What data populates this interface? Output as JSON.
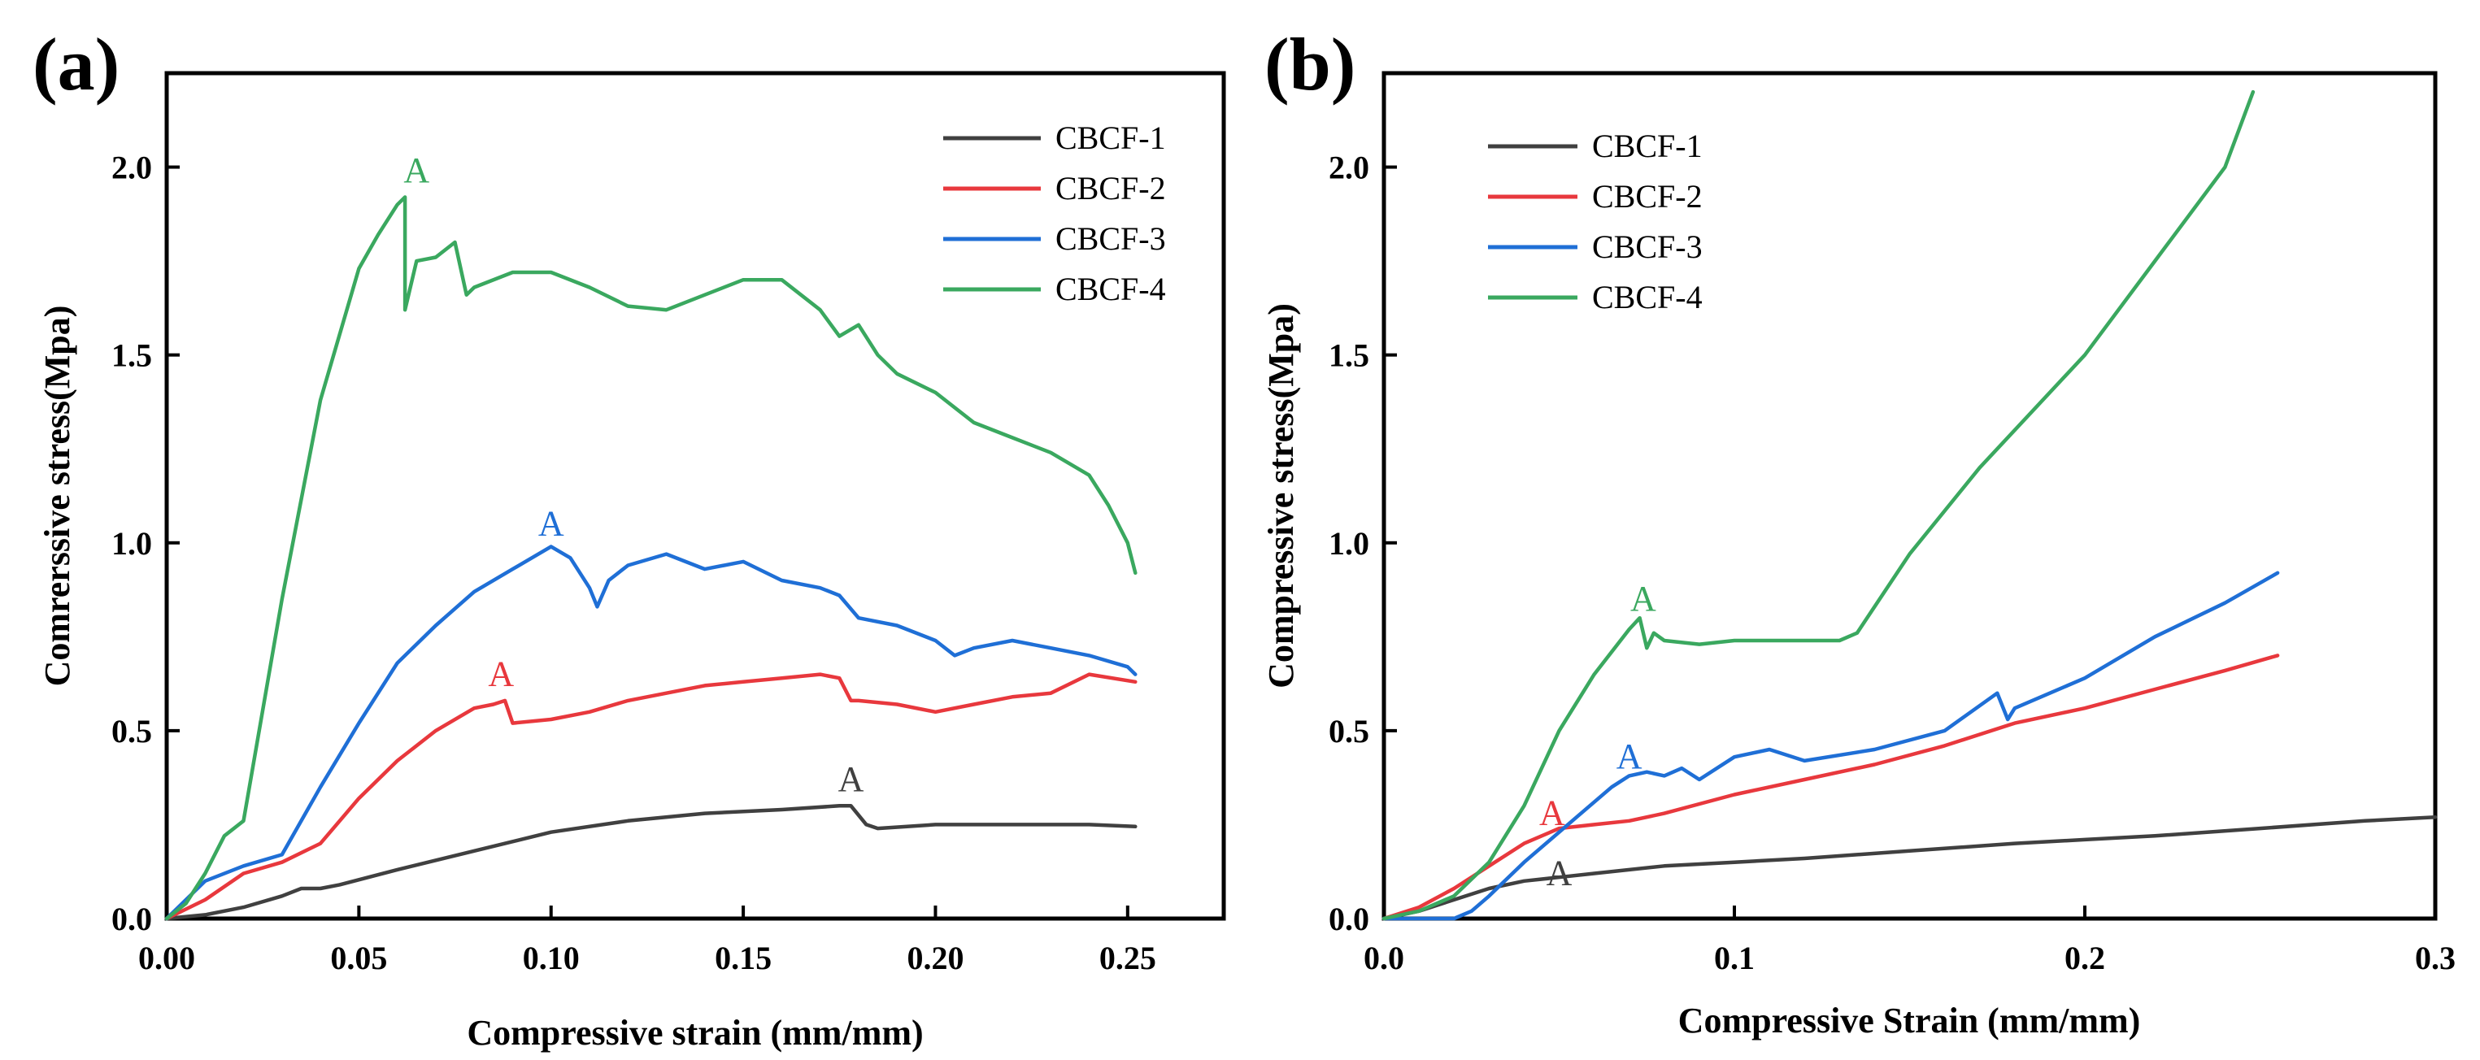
{
  "colors": {
    "CBCF-1": "#404040",
    "CBCF-2": "#e8383d",
    "CBCF-3": "#1f6fd6",
    "CBCF-4": "#3aa85f"
  },
  "chart_data": [
    {
      "panel": "(a)",
      "type": "line",
      "xlabel": "Compressive strain (mm/mm)",
      "ylabel": "Comrerssive stress(Mpa)",
      "xlim": [
        0,
        0.275
      ],
      "ylim": [
        0,
        2.25
      ],
      "xticks": [
        0.0,
        0.05,
        0.1,
        0.15,
        0.2,
        0.25
      ],
      "xtick_labels": [
        "0.00",
        "0.05",
        "0.10",
        "0.15",
        "0.20",
        "0.25"
      ],
      "yticks": [
        0.0,
        0.5,
        1.0,
        1.5,
        2.0
      ],
      "ytick_labels": [
        "0.0",
        "0.5",
        "1.0",
        "1.5",
        "2.0"
      ],
      "legend_position": "top-right",
      "series": [
        {
          "name": "CBCF-1",
          "x": [
            0,
            0.01,
            0.02,
            0.03,
            0.035,
            0.04,
            0.045,
            0.06,
            0.08,
            0.1,
            0.12,
            0.14,
            0.16,
            0.175,
            0.178,
            0.182,
            0.185,
            0.2,
            0.22,
            0.24,
            0.252
          ],
          "y": [
            0,
            0.01,
            0.03,
            0.06,
            0.08,
            0.08,
            0.09,
            0.13,
            0.18,
            0.23,
            0.26,
            0.28,
            0.29,
            0.3,
            0.3,
            0.25,
            0.24,
            0.25,
            0.25,
            0.25,
            0.245
          ]
        },
        {
          "name": "CBCF-2",
          "x": [
            0,
            0.01,
            0.02,
            0.03,
            0.04,
            0.05,
            0.06,
            0.07,
            0.08,
            0.085,
            0.088,
            0.09,
            0.1,
            0.11,
            0.12,
            0.13,
            0.14,
            0.15,
            0.16,
            0.17,
            0.175,
            0.178,
            0.18,
            0.19,
            0.2,
            0.21,
            0.22,
            0.23,
            0.24,
            0.252
          ],
          "y": [
            0,
            0.05,
            0.12,
            0.15,
            0.2,
            0.32,
            0.42,
            0.5,
            0.56,
            0.57,
            0.58,
            0.52,
            0.53,
            0.55,
            0.58,
            0.6,
            0.62,
            0.63,
            0.64,
            0.65,
            0.64,
            0.58,
            0.58,
            0.57,
            0.55,
            0.57,
            0.59,
            0.6,
            0.65,
            0.63
          ]
        },
        {
          "name": "CBCF-3",
          "x": [
            0,
            0.01,
            0.02,
            0.03,
            0.04,
            0.05,
            0.06,
            0.07,
            0.08,
            0.09,
            0.1,
            0.105,
            0.11,
            0.112,
            0.115,
            0.12,
            0.13,
            0.14,
            0.15,
            0.16,
            0.17,
            0.175,
            0.18,
            0.19,
            0.2,
            0.205,
            0.21,
            0.22,
            0.23,
            0.24,
            0.25,
            0.252
          ],
          "y": [
            0,
            0.1,
            0.14,
            0.17,
            0.35,
            0.52,
            0.68,
            0.78,
            0.87,
            0.93,
            0.99,
            0.96,
            0.88,
            0.83,
            0.9,
            0.94,
            0.97,
            0.93,
            0.95,
            0.9,
            0.88,
            0.86,
            0.8,
            0.78,
            0.74,
            0.7,
            0.72,
            0.74,
            0.72,
            0.7,
            0.67,
            0.65
          ]
        },
        {
          "name": "CBCF-4",
          "x": [
            0,
            0.005,
            0.01,
            0.015,
            0.02,
            0.03,
            0.04,
            0.05,
            0.055,
            0.06,
            0.062,
            0.062,
            0.065,
            0.07,
            0.075,
            0.078,
            0.08,
            0.09,
            0.1,
            0.11,
            0.12,
            0.13,
            0.14,
            0.15,
            0.16,
            0.17,
            0.175,
            0.18,
            0.185,
            0.19,
            0.2,
            0.21,
            0.22,
            0.23,
            0.24,
            0.245,
            0.25,
            0.252
          ],
          "y": [
            0,
            0.04,
            0.12,
            0.22,
            0.26,
            0.85,
            1.38,
            1.73,
            1.82,
            1.9,
            1.92,
            1.62,
            1.75,
            1.76,
            1.8,
            1.66,
            1.68,
            1.72,
            1.72,
            1.68,
            1.63,
            1.62,
            1.66,
            1.7,
            1.7,
            1.62,
            1.55,
            1.58,
            1.5,
            1.45,
            1.4,
            1.32,
            1.28,
            1.24,
            1.18,
            1.1,
            1.0,
            0.92
          ]
        }
      ],
      "annotations": [
        {
          "text": "A",
          "series": "CBCF-4",
          "x": 0.065,
          "y": 1.96
        },
        {
          "text": "A",
          "series": "CBCF-3",
          "x": 0.1,
          "y": 1.02
        },
        {
          "text": "A",
          "series": "CBCF-2",
          "x": 0.087,
          "y": 0.62
        },
        {
          "text": "A",
          "series": "CBCF-1",
          "x": 0.178,
          "y": 0.34
        }
      ]
    },
    {
      "panel": "(b)",
      "type": "line",
      "xlabel": "Compressive Strain (mm/mm)",
      "ylabel": "Compressive stress(Mpa)",
      "xlim": [
        0,
        0.3
      ],
      "ylim": [
        0,
        2.25
      ],
      "xticks": [
        0.0,
        0.1,
        0.2,
        0.3
      ],
      "xtick_labels": [
        "0.0",
        "0.1",
        "0.2",
        "0.3"
      ],
      "yticks": [
        0.0,
        0.5,
        1.0,
        1.5,
        2.0
      ],
      "ytick_labels": [
        "0.0",
        "0.5",
        "1.0",
        "1.5",
        "2.0"
      ],
      "legend_position": "top-left",
      "series": [
        {
          "name": "CBCF-1",
          "x": [
            0,
            0.01,
            0.02,
            0.03,
            0.04,
            0.05,
            0.06,
            0.08,
            0.1,
            0.12,
            0.15,
            0.18,
            0.2,
            0.22,
            0.25,
            0.28,
            0.3
          ],
          "y": [
            0,
            0.02,
            0.05,
            0.08,
            0.1,
            0.11,
            0.12,
            0.14,
            0.15,
            0.16,
            0.18,
            0.2,
            0.21,
            0.22,
            0.24,
            0.26,
            0.27
          ]
        },
        {
          "name": "CBCF-2",
          "x": [
            0,
            0.01,
            0.02,
            0.03,
            0.04,
            0.05,
            0.06,
            0.07,
            0.08,
            0.1,
            0.12,
            0.14,
            0.16,
            0.18,
            0.2,
            0.22,
            0.24,
            0.255
          ],
          "y": [
            0,
            0.03,
            0.08,
            0.14,
            0.2,
            0.24,
            0.25,
            0.26,
            0.28,
            0.33,
            0.37,
            0.41,
            0.46,
            0.52,
            0.56,
            0.61,
            0.66,
            0.7
          ]
        },
        {
          "name": "CBCF-3",
          "x": [
            0,
            0.02,
            0.025,
            0.03,
            0.04,
            0.05,
            0.055,
            0.06,
            0.065,
            0.07,
            0.075,
            0.08,
            0.085,
            0.09,
            0.1,
            0.11,
            0.12,
            0.14,
            0.16,
            0.175,
            0.178,
            0.18,
            0.2,
            0.22,
            0.24,
            0.255
          ],
          "y": [
            0,
            0.0,
            0.02,
            0.06,
            0.15,
            0.23,
            0.27,
            0.31,
            0.35,
            0.38,
            0.39,
            0.38,
            0.4,
            0.37,
            0.43,
            0.45,
            0.42,
            0.45,
            0.5,
            0.6,
            0.53,
            0.56,
            0.64,
            0.75,
            0.84,
            0.92
          ]
        },
        {
          "name": "CBCF-4",
          "x": [
            0,
            0.01,
            0.02,
            0.03,
            0.04,
            0.05,
            0.06,
            0.07,
            0.073,
            0.075,
            0.077,
            0.08,
            0.09,
            0.1,
            0.11,
            0.12,
            0.13,
            0.135,
            0.15,
            0.17,
            0.2,
            0.22,
            0.24,
            0.248
          ],
          "y": [
            0,
            0.02,
            0.06,
            0.15,
            0.3,
            0.5,
            0.65,
            0.77,
            0.8,
            0.72,
            0.76,
            0.74,
            0.73,
            0.74,
            0.74,
            0.74,
            0.74,
            0.76,
            0.97,
            1.2,
            1.5,
            1.75,
            2.0,
            2.2
          ]
        }
      ],
      "annotations": [
        {
          "text": "A",
          "series": "CBCF-4",
          "x": 0.074,
          "y": 0.82
        },
        {
          "text": "A",
          "series": "CBCF-3",
          "x": 0.07,
          "y": 0.4
        },
        {
          "text": "A",
          "series": "CBCF-2",
          "x": 0.048,
          "y": 0.25
        },
        {
          "text": "A",
          "series": "CBCF-1",
          "x": 0.05,
          "y": 0.09
        }
      ]
    }
  ]
}
